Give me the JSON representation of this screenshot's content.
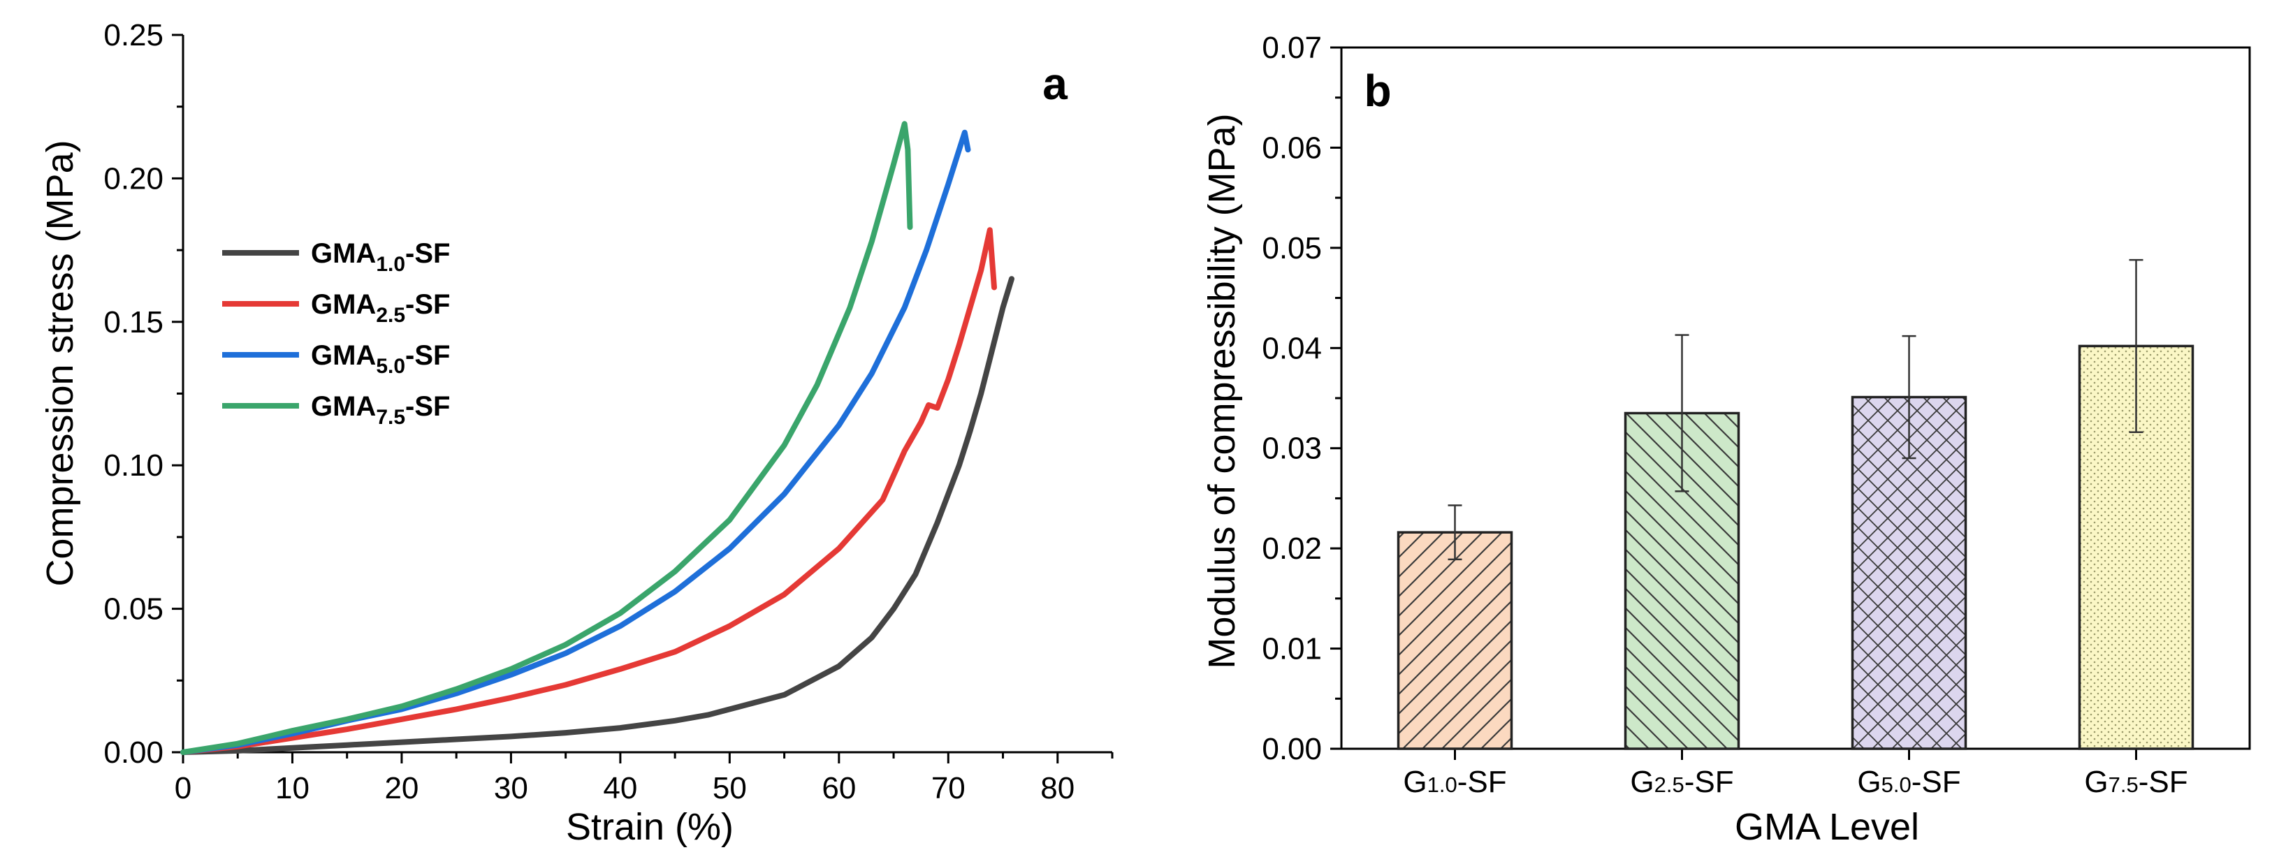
{
  "chart_data": [
    {
      "type": "line",
      "panel_label": "a",
      "xlabel": "Strain (%)",
      "ylabel": "Compression stress (MPa)",
      "xlim": [
        0,
        85
      ],
      "ylim": [
        0,
        0.25
      ],
      "xticks": [
        "0",
        "10",
        "20",
        "30",
        "40",
        "50",
        "60",
        "70",
        "80"
      ],
      "yticks": [
        "0.00",
        "0.05",
        "0.10",
        "0.15",
        "0.20",
        "0.25"
      ],
      "legend_position": "upper-left",
      "series": [
        {
          "name": "GMA1.0-SF",
          "name_main": "GMA",
          "name_sub": "1.0",
          "name_suffix": "-SF",
          "color": "#444444",
          "x": [
            0,
            5,
            10,
            15,
            20,
            25,
            30,
            35,
            40,
            45,
            48,
            50,
            55,
            60,
            63,
            65,
            67,
            69,
            71,
            72,
            73,
            74,
            75,
            75.8
          ],
          "y": [
            0,
            0.0005,
            0.0015,
            0.0025,
            0.0035,
            0.0045,
            0.0055,
            0.0068,
            0.0085,
            0.011,
            0.013,
            0.015,
            0.02,
            0.03,
            0.04,
            0.05,
            0.062,
            0.08,
            0.1,
            0.112,
            0.125,
            0.14,
            0.155,
            0.165
          ]
        },
        {
          "name": "GMA2.5-SF",
          "name_main": "GMA",
          "name_sub": "2.5",
          "name_suffix": "-SF",
          "color": "#e53935",
          "x": [
            0,
            5,
            10,
            15,
            20,
            25,
            30,
            35,
            40,
            45,
            50,
            55,
            60,
            64,
            66,
            67.5,
            68.2,
            69,
            70,
            71,
            72,
            73,
            73.8,
            74.2
          ],
          "y": [
            0,
            0.002,
            0.005,
            0.008,
            0.0115,
            0.015,
            0.019,
            0.0235,
            0.029,
            0.035,
            0.044,
            0.055,
            0.071,
            0.088,
            0.105,
            0.115,
            0.121,
            0.12,
            0.13,
            0.142,
            0.155,
            0.168,
            0.182,
            0.162
          ]
        },
        {
          "name": "GMA5.0-SF",
          "name_main": "GMA",
          "name_sub": "5.0",
          "name_suffix": "-SF",
          "color": "#1e6fd9",
          "x": [
            0,
            5,
            10,
            15,
            20,
            25,
            30,
            35,
            40,
            45,
            50,
            55,
            60,
            63,
            66,
            68,
            70,
            71,
            71.5,
            71.8
          ],
          "y": [
            0,
            0.0025,
            0.0065,
            0.011,
            0.015,
            0.0205,
            0.027,
            0.0345,
            0.044,
            0.056,
            0.071,
            0.09,
            0.114,
            0.132,
            0.155,
            0.175,
            0.198,
            0.21,
            0.216,
            0.21
          ]
        },
        {
          "name": "GMA7.5-SF",
          "name_main": "GMA",
          "name_sub": "7.5",
          "name_suffix": "-SF",
          "color": "#3aa56b",
          "x": [
            0,
            5,
            10,
            15,
            20,
            25,
            30,
            35,
            40,
            45,
            50,
            55,
            58,
            61,
            63,
            65,
            66,
            66.3,
            66.5
          ],
          "y": [
            0,
            0.003,
            0.0075,
            0.0115,
            0.016,
            0.022,
            0.029,
            0.0375,
            0.0485,
            0.063,
            0.081,
            0.107,
            0.128,
            0.155,
            0.178,
            0.205,
            0.219,
            0.21,
            0.183
          ]
        }
      ]
    },
    {
      "type": "bar",
      "panel_label": "b",
      "xlabel": "GMA Level",
      "ylabel": "Modulus of compressibility (MPa)",
      "ylim": [
        0,
        0.07
      ],
      "yticks": [
        "0.00",
        "0.01",
        "0.02",
        "0.03",
        "0.04",
        "0.05",
        "0.06",
        "0.07"
      ],
      "categories": [
        "G1.0-SF",
        "G2.5-SF",
        "G5.0-SF",
        "G7.5-SF"
      ],
      "category_parts": [
        {
          "main": "G",
          "sub": "1.0",
          "suffix": "-SF"
        },
        {
          "main": "G",
          "sub": "2.5",
          "suffix": "-SF"
        },
        {
          "main": "G",
          "sub": "5.0",
          "suffix": "-SF"
        },
        {
          "main": "G",
          "sub": "7.5",
          "suffix": "-SF"
        }
      ],
      "values": [
        0.0216,
        0.0335,
        0.0351,
        0.0402
      ],
      "errors": [
        0.0027,
        0.0078,
        0.0061,
        0.0086
      ],
      "fills": [
        "#fbd9c0",
        "#cde8c9",
        "#dcd6ee",
        "#fbf7c6"
      ],
      "hatch": [
        "diag-right",
        "diag-left",
        "cross",
        "dots"
      ]
    }
  ]
}
